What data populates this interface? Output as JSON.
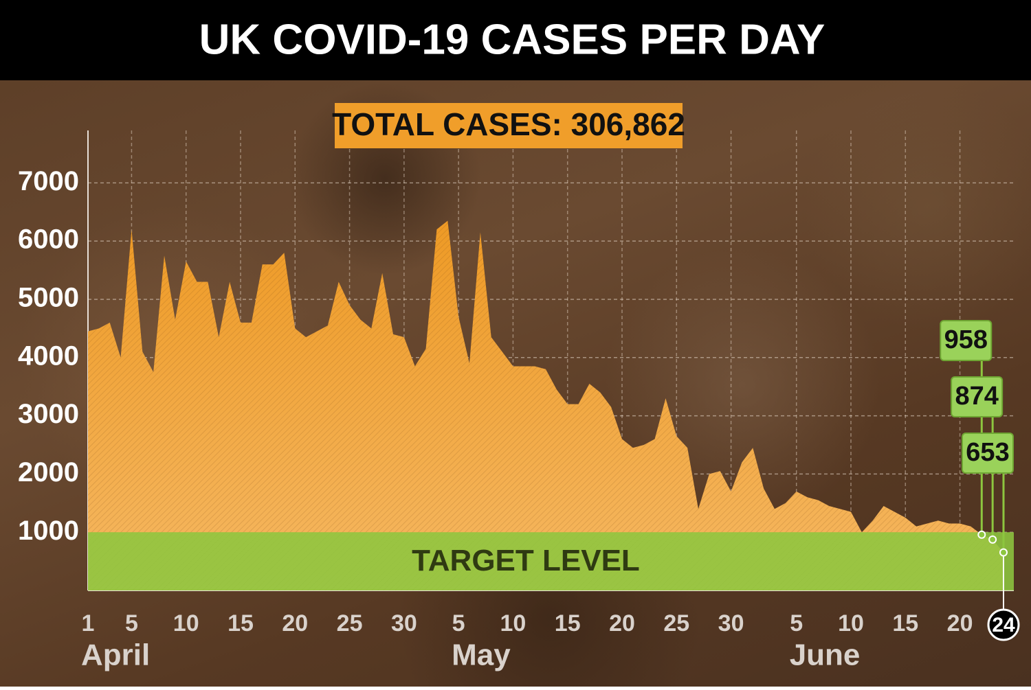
{
  "title": "UK COVID-19 CASES PER DAY",
  "chart_data": {
    "type": "area",
    "total_label": "TOTAL CASES: 306,862",
    "categories": [
      "1",
      null,
      null,
      null,
      "5",
      null,
      null,
      null,
      null,
      "10",
      null,
      null,
      null,
      null,
      "15",
      null,
      null,
      null,
      null,
      "20",
      null,
      null,
      null,
      null,
      "25",
      null,
      null,
      null,
      null,
      "30",
      null,
      null,
      null,
      null,
      "5",
      null,
      null,
      null,
      null,
      "10",
      null,
      null,
      null,
      null,
      "15",
      null,
      null,
      null,
      null,
      "20",
      null,
      null,
      null,
      null,
      "25",
      null,
      null,
      null,
      null,
      "30",
      null,
      null,
      null,
      null,
      null,
      "5",
      null,
      null,
      null,
      null,
      "10",
      null,
      null,
      null,
      null,
      "15",
      null,
      null,
      null,
      null,
      "20",
      null,
      null,
      null,
      "24"
    ],
    "months": [
      "April",
      "May",
      "June"
    ],
    "series": [
      {
        "name": "Cases",
        "color": "#f0a131",
        "values": [
          4450,
          4500,
          4600,
          4000,
          6200,
          4100,
          3750,
          5750,
          4650,
          5650,
          5300,
          5300,
          4350,
          5300,
          4600,
          4600,
          5600,
          5600,
          5800,
          4500,
          4350,
          4450,
          4550,
          5300,
          4900,
          4650,
          4500,
          5450,
          4400,
          4350,
          3850,
          4150,
          6200,
          6350,
          4700,
          3900,
          6150,
          4350,
          4100,
          3850,
          3850,
          3850,
          3800,
          3450,
          3200,
          3200,
          3550,
          3400,
          3150,
          2600,
          2450,
          2500,
          2600,
          3300,
          2650,
          2450,
          1400,
          2000,
          2050,
          1700,
          2200,
          2450,
          1750,
          1400,
          1500,
          1700,
          1600,
          1550,
          1450,
          1400,
          1350,
          1000,
          1200,
          1450,
          1350,
          1250,
          1100,
          1150,
          1200,
          1150,
          1150,
          1100,
          958,
          874,
          653
        ],
        "value_labels": [
          null,
          null,
          null,
          null,
          null,
          null,
          null,
          null,
          null,
          null,
          null,
          null,
          null,
          null,
          null,
          null,
          null,
          null,
          null,
          null,
          null,
          null,
          null,
          null,
          null,
          null,
          null,
          null,
          null,
          null,
          null,
          null,
          null,
          null,
          null,
          null,
          null,
          null,
          null,
          null,
          null,
          null,
          null,
          null,
          null,
          null,
          null,
          null,
          null,
          null,
          null,
          null,
          null,
          null,
          null,
          null,
          null,
          null,
          null,
          null,
          null,
          null,
          null,
          null,
          null,
          null,
          null,
          null,
          null,
          null,
          null,
          null,
          null,
          null,
          null,
          null,
          null,
          null,
          null,
          null,
          null,
          null,
          "958",
          "874",
          "653"
        ]
      }
    ],
    "target": {
      "label": "TARGET LEVEL",
      "value": 1000,
      "color": "#8dc63f"
    },
    "ylim": [
      0,
      7900
    ],
    "yticks": [
      1000,
      2000,
      3000,
      4000,
      5000,
      6000,
      7000
    ],
    "grid": true
  }
}
